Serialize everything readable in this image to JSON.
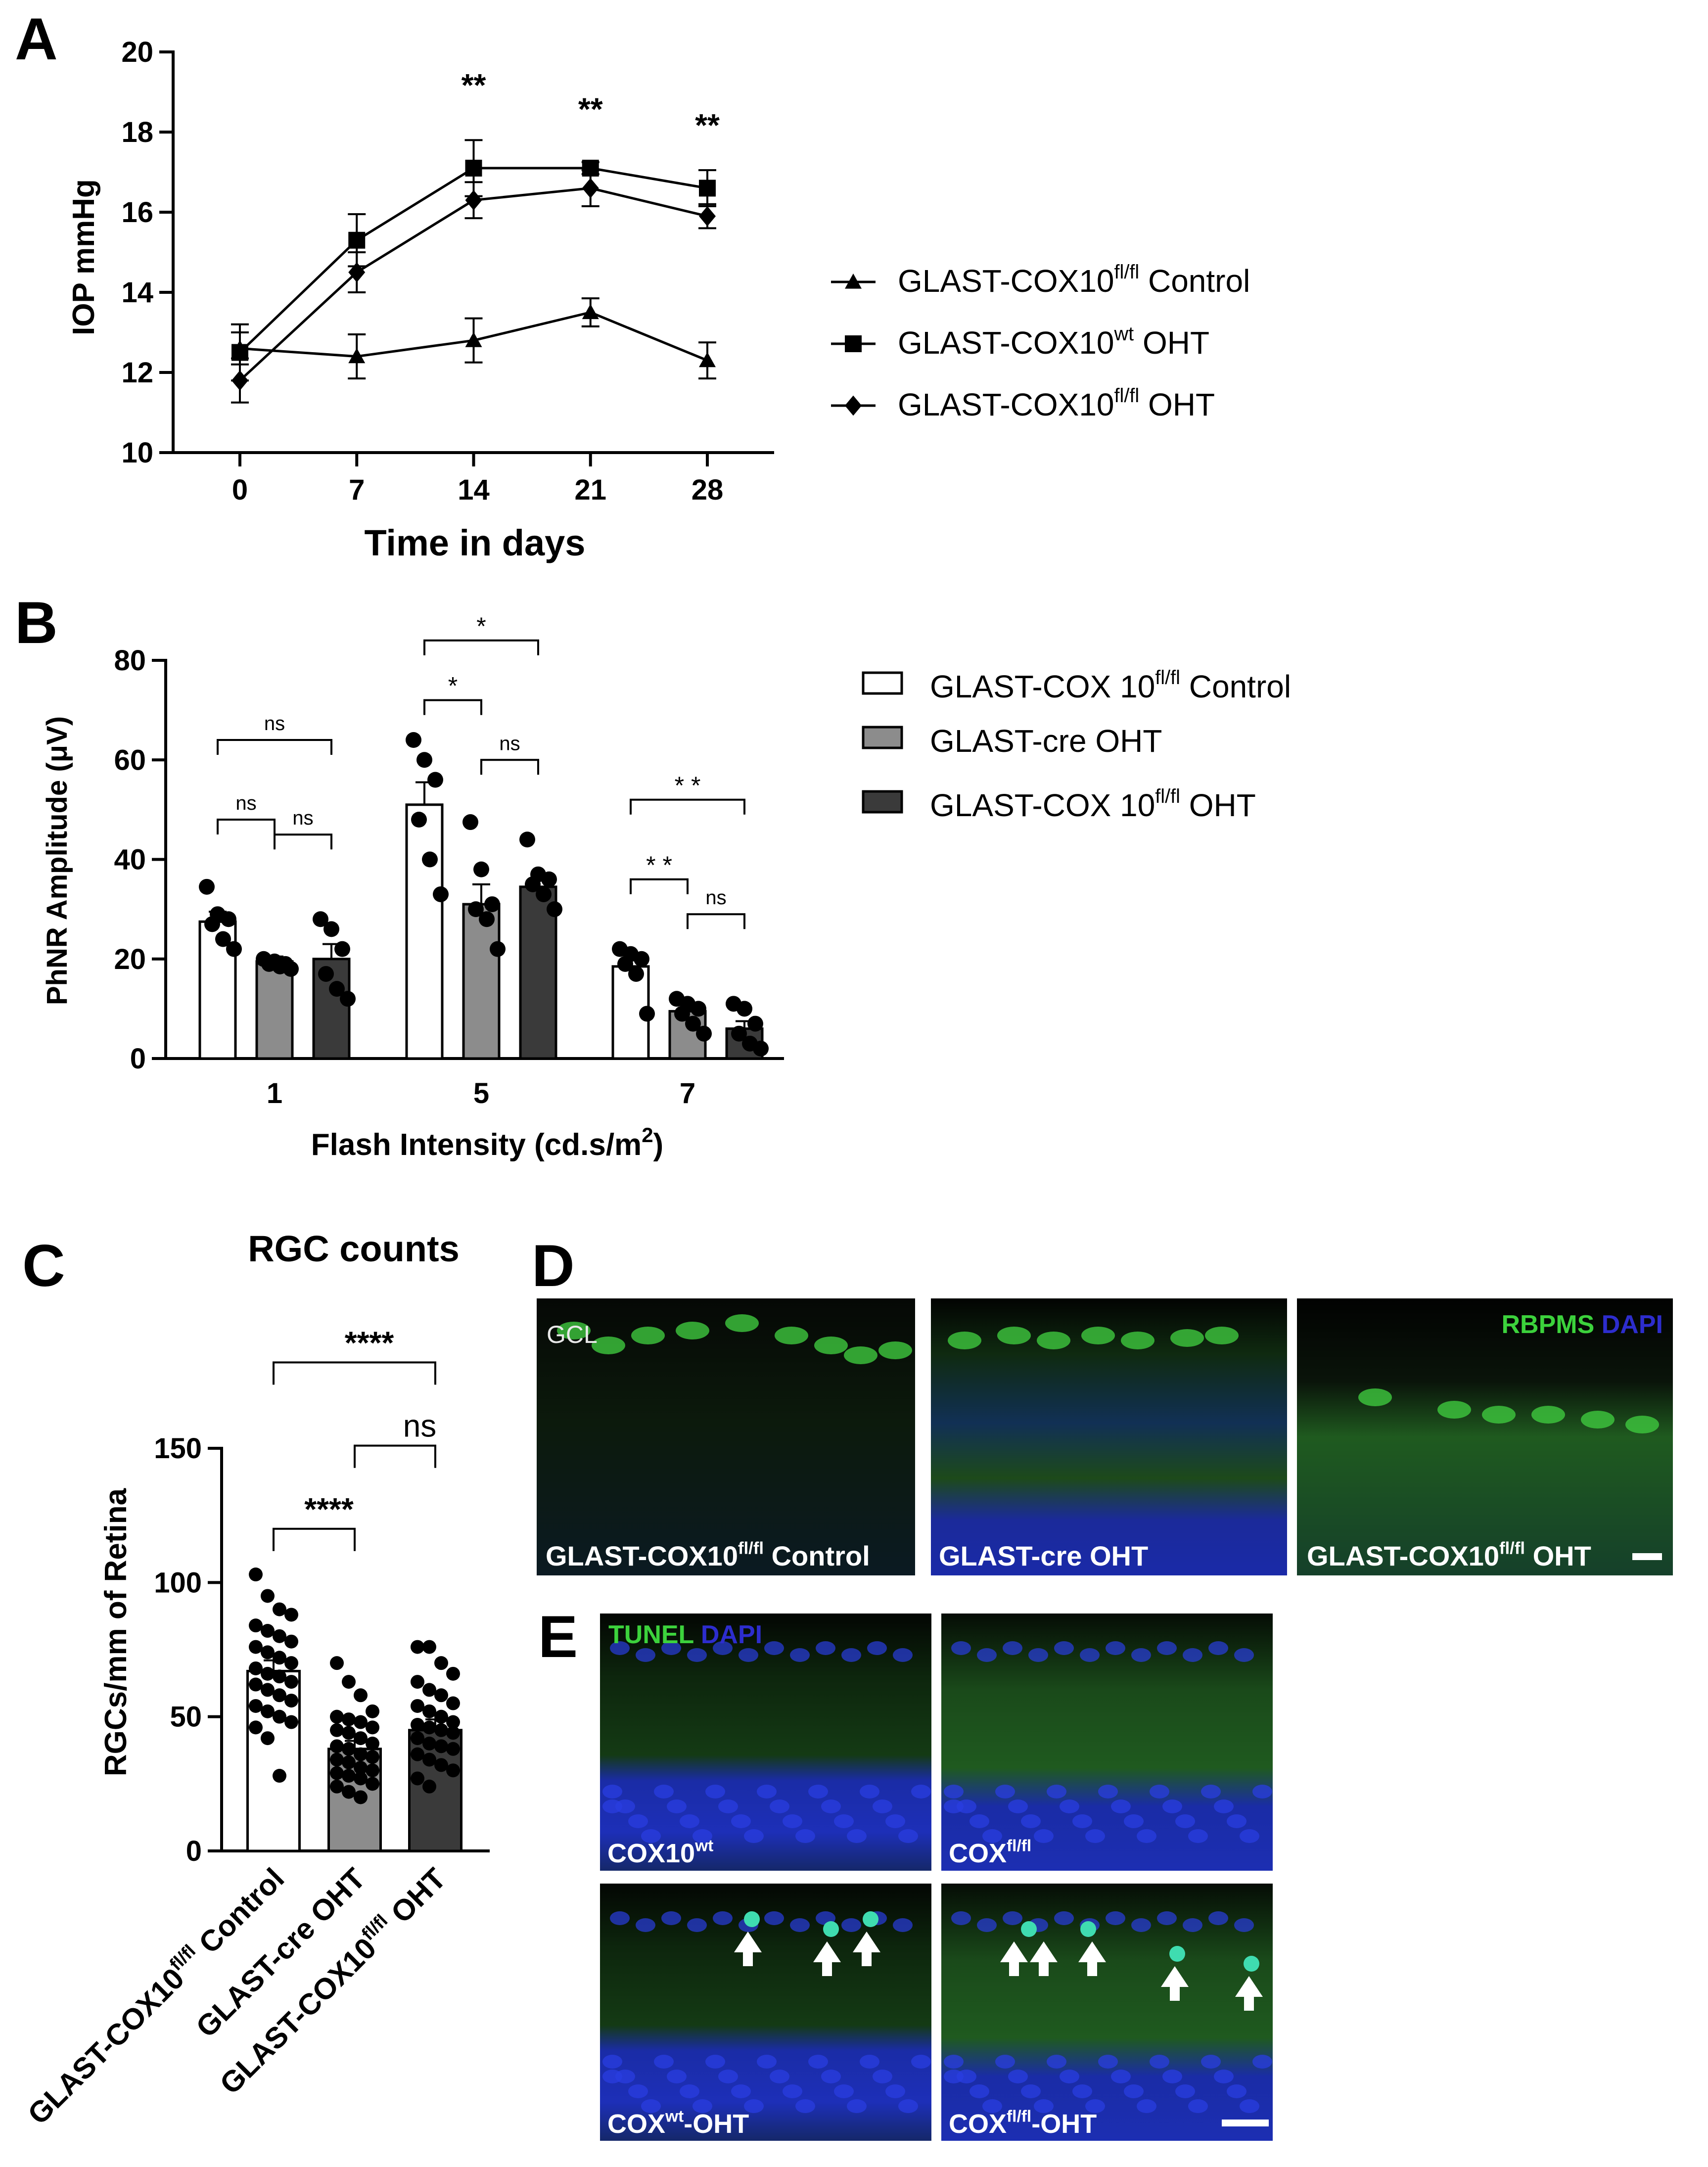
{
  "panels": {
    "A": {
      "letter": "A"
    },
    "B": {
      "letter": "B"
    },
    "C": {
      "letter": "C",
      "title": "RGC counts"
    },
    "D": {
      "letter": "D",
      "image_labels": [
        "GLAST-COX10",
        "GLAST-cre OHT",
        "GLAST-COX10"
      ],
      "label_sup": [
        "fl/fl",
        "",
        "fl/fl"
      ],
      "label_tail": [
        " Control",
        "",
        " OHT"
      ],
      "gcl_label": "GCL",
      "stain_green": "RBPMS",
      "stain_blue": "DAPI"
    },
    "E": {
      "letter": "E",
      "image_labels": [
        "COX10",
        "COX",
        "COX",
        "COX"
      ],
      "label_sup": [
        "wt",
        "fl/fl",
        "wt",
        "fl/fl"
      ],
      "label_tail": [
        "",
        "",
        "-OHT",
        "-OHT"
      ],
      "stain_green": "TUNEL",
      "stain_blue": "DAPI"
    }
  },
  "colors": {
    "bar_control": "#ffffff",
    "bar_cre": "#8c8c8c",
    "bar_ff": "#3a3a3a",
    "micro_green": "#3cd23c",
    "micro_blue": "#2d2dcd"
  },
  "chart_data": [
    {
      "panel": "A",
      "type": "line",
      "xlabel": "Time in days",
      "ylabel": "IOP mmHg",
      "x": [
        0,
        7,
        14,
        21,
        28
      ],
      "xlim": [
        -4,
        32
      ],
      "ylim": [
        10,
        20
      ],
      "yticks": [
        10,
        12,
        14,
        16,
        18,
        20
      ],
      "series": [
        {
          "name_base": "GLAST-COX10",
          "name_sup": "fl/fl",
          "name_tail": " Control",
          "marker": "triangle",
          "values": [
            12.6,
            12.4,
            12.8,
            13.5,
            12.3
          ],
          "errors": [
            0.4,
            0.55,
            0.55,
            0.35,
            0.45
          ]
        },
        {
          "name_base": "GLAST-COX10",
          "name_sup": "wt",
          "name_tail": " OHT",
          "marker": "square",
          "values": [
            12.5,
            15.3,
            17.1,
            17.1,
            16.6
          ],
          "errors": [
            0.7,
            0.65,
            0.7,
            0.15,
            0.45
          ]
        },
        {
          "name_base": "GLAST-COX10",
          "name_sup": "fl/fl",
          "name_tail": " OHT",
          "marker": "diamond",
          "values": [
            11.8,
            14.5,
            16.3,
            16.6,
            15.9
          ],
          "errors": [
            0.55,
            0.5,
            0.45,
            0.45,
            0.3
          ]
        }
      ],
      "annotations": [
        {
          "x": 14,
          "text": "**"
        },
        {
          "x": 21,
          "text": "**"
        },
        {
          "x": 28,
          "text": "**"
        }
      ]
    },
    {
      "panel": "B",
      "type": "bar",
      "xlabel_base": "Flash Intensity (cd.s/m",
      "xlabel_sup": "2",
      "xlabel_tail": ")",
      "ylabel": "PhNR Amplitude (μV)",
      "categories": [
        "1",
        "5",
        "7"
      ],
      "ylim": [
        0,
        80
      ],
      "yticks": [
        0,
        20,
        40,
        60,
        80
      ],
      "series": [
        {
          "name_base": "GLAST-COX 10",
          "name_sup": "fl/fl",
          "name_tail": " Control",
          "values": [
            27.5,
            51,
            18.5
          ],
          "errors": [
            2,
            4.5,
            1.5
          ],
          "points": [
            [
              34.5,
              29,
              28,
              27,
              24,
              22
            ],
            [
              64,
              60,
              56,
              48,
              40,
              33
            ],
            [
              22,
              21,
              20,
              19,
              17,
              9
            ]
          ]
        },
        {
          "name_base": "GLAST-cre OHT",
          "name_sup": "",
          "name_tail": "",
          "values": [
            19.5,
            31,
            9.5
          ],
          "errors": [
            1,
            4,
            1.5
          ],
          "points": [
            [
              20,
              19.5,
              19,
              19,
              18.5,
              18
            ],
            [
              47.5,
              38,
              31,
              30,
              28,
              22
            ],
            [
              12,
              11,
              10,
              9,
              7,
              5
            ]
          ]
        },
        {
          "name_base": "GLAST-COX 10",
          "name_sup": "fl/fl",
          "name_tail": " OHT",
          "values": [
            20,
            34.5,
            6
          ],
          "errors": [
            3,
            1.5,
            1.5
          ],
          "points": [
            [
              28,
              26,
              22,
              17,
              14,
              12
            ],
            [
              44,
              37,
              36,
              35,
              33,
              30
            ],
            [
              11,
              10,
              7,
              5,
              3,
              2
            ]
          ]
        }
      ],
      "significance": [
        {
          "group": 0,
          "from": 0,
          "to": 1,
          "y": 48,
          "text": "ns"
        },
        {
          "group": 0,
          "from": 1,
          "to": 2,
          "y": 45,
          "text": "ns"
        },
        {
          "group": 0,
          "from": 0,
          "to": 2,
          "y": 64,
          "text": "ns"
        },
        {
          "group": 1,
          "from": 0,
          "to": 1,
          "y": 72,
          "text": "*"
        },
        {
          "group": 1,
          "from": 1,
          "to": 2,
          "y": 60,
          "text": "ns"
        },
        {
          "group": 1,
          "from": 0,
          "to": 2,
          "y": 84,
          "text": "*"
        },
        {
          "group": 2,
          "from": 0,
          "to": 1,
          "y": 36,
          "text": "* *"
        },
        {
          "group": 2,
          "from": 1,
          "to": 2,
          "y": 29,
          "text": "ns"
        },
        {
          "group": 2,
          "from": 0,
          "to": 2,
          "y": 52,
          "text": "* *"
        }
      ]
    },
    {
      "panel": "C",
      "type": "bar",
      "title": "RGC counts",
      "ylabel": "RGCs/mm of Retina",
      "ylim": [
        0,
        150
      ],
      "yticks": [
        0,
        50,
        100,
        150
      ],
      "categories_base": [
        "GLAST-COX10",
        "GLAST-cre OHT",
        "GLAST-COX10"
      ],
      "categories_sup": [
        "fl/fl",
        "",
        "fl/fl"
      ],
      "categories_tail": [
        " Control",
        "",
        " OHT"
      ],
      "values": [
        67,
        38,
        45
      ],
      "errors": [
        4,
        3,
        4
      ],
      "points": [
        [
          103,
          95,
          90,
          88,
          84,
          82,
          80,
          78,
          76,
          74,
          72,
          70,
          68,
          66,
          65,
          63,
          62,
          60,
          58,
          56,
          54,
          52,
          50,
          48,
          46,
          42,
          28
        ],
        [
          70,
          63,
          58,
          52,
          50,
          49,
          48,
          46,
          45,
          44,
          42,
          40,
          39,
          38,
          36,
          35,
          34,
          33,
          31,
          30,
          29,
          28,
          27,
          25,
          24,
          22,
          20
        ],
        [
          76,
          76,
          70,
          66,
          63,
          60,
          58,
          55,
          54,
          52,
          50,
          48,
          47,
          46,
          45,
          44,
          42,
          40,
          39,
          38,
          36,
          34,
          32,
          30,
          27,
          24
        ]
      ],
      "significance": [
        {
          "from": 0,
          "to": 1,
          "y": 120,
          "text": "****"
        },
        {
          "from": 1,
          "to": 2,
          "y": 151,
          "text": "ns"
        },
        {
          "from": 0,
          "to": 2,
          "y": 182,
          "text": "****"
        }
      ]
    }
  ]
}
